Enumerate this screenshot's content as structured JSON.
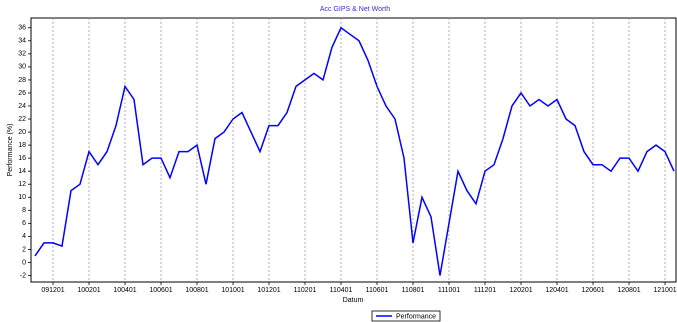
{
  "chart_data": {
    "type": "line",
    "title": "Acc GIPS & Net Worth",
    "x_label": "Datum",
    "y_label": "Performance (%)",
    "categories": [
      null,
      null,
      "091201",
      null,
      null,
      null,
      "100201",
      null,
      null,
      null,
      "100401",
      null,
      null,
      null,
      "100601",
      null,
      null,
      null,
      "100801",
      null,
      null,
      null,
      "101001",
      null,
      null,
      null,
      "101201",
      null,
      null,
      null,
      "110201",
      null,
      null,
      null,
      "110401",
      null,
      null,
      null,
      "110601",
      null,
      null,
      null,
      "110801",
      null,
      null,
      null,
      "111001",
      null,
      null,
      null,
      "111201",
      null,
      null,
      null,
      "120201",
      null,
      null,
      null,
      "120401",
      null,
      null,
      null,
      "120601",
      null,
      null,
      null,
      "120801",
      null,
      null,
      null,
      "121001",
      null
    ],
    "series": [
      {
        "name": "Performance",
        "color": "#0000ff",
        "values": [
          1,
          3,
          3,
          2.5,
          11,
          12,
          17,
          15,
          17,
          21,
          27,
          25,
          15,
          16,
          16,
          13,
          17,
          17,
          18,
          12,
          19,
          20,
          22,
          23,
          20,
          17,
          21,
          21,
          23,
          27,
          28,
          29,
          28,
          33,
          36,
          35,
          34,
          31,
          27,
          24,
          22,
          16,
          3,
          10,
          7,
          -2,
          6,
          14,
          11,
          9,
          14,
          15,
          19,
          24,
          26,
          24,
          25,
          24,
          25,
          22,
          21,
          17,
          15,
          15,
          14,
          16,
          16,
          14,
          17,
          18,
          17,
          14
        ]
      }
    ],
    "ylim": [
      -3,
      37.5
    ],
    "yticks": [
      -2,
      0,
      2,
      4,
      6,
      8,
      10,
      12,
      14,
      16,
      18,
      20,
      22,
      24,
      26,
      28,
      30,
      32,
      34,
      36
    ],
    "grid": true,
    "legend": "bottom"
  }
}
